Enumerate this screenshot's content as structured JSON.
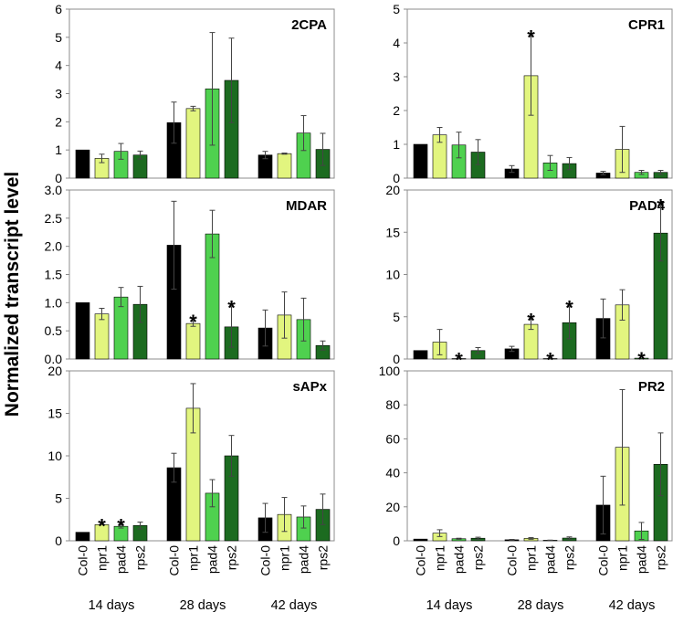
{
  "ylabel": "Normalized transcript level",
  "groups": [
    "14 days",
    "28 days",
    "42 days"
  ],
  "genotypes": [
    "Col-0",
    "npr1",
    "pad4",
    "rps2"
  ],
  "colors": [
    "#000000",
    "#e2f57f",
    "#4fd14f",
    "#1c6b20"
  ],
  "chart_data": [
    {
      "type": "bar",
      "title": "2CPA",
      "ylim": [
        0,
        6
      ],
      "yticks": [
        "0",
        "1",
        "2",
        "3",
        "4",
        "5",
        "6"
      ],
      "categories": [
        "14 days",
        "28 days",
        "42 days"
      ],
      "series": [
        {
          "name": "Col-0",
          "values": [
            1.0,
            1.97,
            0.82
          ],
          "errors": [
            0.0,
            0.73,
            0.13
          ]
        },
        {
          "name": "npr1",
          "values": [
            0.7,
            2.47,
            0.87
          ],
          "errors": [
            0.15,
            0.08,
            0.02
          ]
        },
        {
          "name": "pad4",
          "values": [
            0.95,
            3.17,
            1.6
          ],
          "errors": [
            0.28,
            2.0,
            0.62
          ]
        },
        {
          "name": "rps2",
          "values": [
            0.82,
            3.47,
            1.02
          ],
          "errors": [
            0.14,
            1.5,
            0.57
          ]
        }
      ],
      "stars": []
    },
    {
      "type": "bar",
      "title": "CPR1",
      "ylim": [
        0,
        5
      ],
      "yticks": [
        "0",
        "1",
        "2",
        "3",
        "4",
        "5"
      ],
      "categories": [
        "14 days",
        "28 days",
        "42 days"
      ],
      "series": [
        {
          "name": "Col-0",
          "values": [
            1.0,
            0.27,
            0.15
          ],
          "errors": [
            0.0,
            0.1,
            0.05
          ]
        },
        {
          "name": "npr1",
          "values": [
            1.28,
            3.03,
            0.85
          ],
          "errors": [
            0.22,
            1.17,
            0.68
          ]
        },
        {
          "name": "pad4",
          "values": [
            0.98,
            0.45,
            0.17
          ],
          "errors": [
            0.38,
            0.22,
            0.06
          ]
        },
        {
          "name": "rps2",
          "values": [
            0.77,
            0.43,
            0.17
          ],
          "errors": [
            0.37,
            0.18,
            0.06
          ]
        }
      ],
      "stars": [
        {
          "group": 1,
          "series": 1,
          "label": "*"
        }
      ]
    },
    {
      "type": "bar",
      "title": "MDAR",
      "ylim": [
        0,
        3.0
      ],
      "yticks": [
        "0.0",
        "0.5",
        "1.0",
        "1.5",
        "2.0",
        "2.5",
        "3.0"
      ],
      "categories": [
        "14 days",
        "28 days",
        "42 days"
      ],
      "series": [
        {
          "name": "Col-0",
          "values": [
            1.0,
            2.02,
            0.55
          ],
          "errors": [
            0.0,
            0.78,
            0.32
          ]
        },
        {
          "name": "npr1",
          "values": [
            0.8,
            0.63,
            0.78
          ],
          "errors": [
            0.1,
            0.05,
            0.41
          ]
        },
        {
          "name": "pad4",
          "values": [
            1.1,
            2.22,
            0.7
          ],
          "errors": [
            0.17,
            0.42,
            0.38
          ]
        },
        {
          "name": "rps2",
          "values": [
            0.97,
            0.57,
            0.24
          ],
          "errors": [
            0.32,
            0.36,
            0.08
          ]
        }
      ],
      "stars": [
        {
          "group": 1,
          "series": 1,
          "label": "*"
        },
        {
          "group": 1,
          "series": 3,
          "label": "*"
        }
      ]
    },
    {
      "type": "bar",
      "title": "PAD4",
      "ylim": [
        0,
        20
      ],
      "yticks": [
        "0",
        "5",
        "10",
        "15",
        "20"
      ],
      "categories": [
        "14 days",
        "28 days",
        "42 days"
      ],
      "series": [
        {
          "name": "Col-0",
          "values": [
            1.0,
            1.2,
            4.8
          ],
          "errors": [
            0.0,
            0.3,
            2.3
          ]
        },
        {
          "name": "npr1",
          "values": [
            2.0,
            4.1,
            6.4
          ],
          "errors": [
            1.5,
            0.6,
            1.8
          ]
        },
        {
          "name": "pad4",
          "values": [
            0.05,
            0.05,
            0.1
          ],
          "errors": [
            0.0,
            0.0,
            0.0
          ]
        },
        {
          "name": "rps2",
          "values": [
            1.0,
            4.3,
            14.9
          ],
          "errors": [
            0.35,
            1.9,
            3.3
          ]
        }
      ],
      "stars": [
        {
          "group": 0,
          "series": 2,
          "label": "*"
        },
        {
          "group": 1,
          "series": 1,
          "label": "*"
        },
        {
          "group": 1,
          "series": 2,
          "label": "*"
        },
        {
          "group": 1,
          "series": 3,
          "label": "*"
        },
        {
          "group": 2,
          "series": 2,
          "label": "*"
        },
        {
          "group": 2,
          "series": 3,
          "label": "*"
        }
      ]
    },
    {
      "type": "bar",
      "title": "sAPx",
      "ylim": [
        0,
        20
      ],
      "yticks": [
        "0",
        "5",
        "10",
        "15",
        "20"
      ],
      "categories": [
        "14 days",
        "28 days",
        "42 days"
      ],
      "series": [
        {
          "name": "Col-0",
          "values": [
            1.0,
            8.6,
            2.7
          ],
          "errors": [
            0.0,
            1.7,
            1.7
          ]
        },
        {
          "name": "npr1",
          "values": [
            1.9,
            15.6,
            3.1
          ],
          "errors": [
            0.0,
            2.9,
            2.0
          ]
        },
        {
          "name": "pad4",
          "values": [
            1.7,
            5.6,
            2.8
          ],
          "errors": [
            0.2,
            1.6,
            1.3
          ]
        },
        {
          "name": "rps2",
          "values": [
            1.8,
            10.0,
            3.7
          ],
          "errors": [
            0.4,
            2.4,
            1.8
          ]
        }
      ],
      "stars": [
        {
          "group": 0,
          "series": 1,
          "label": "*"
        },
        {
          "group": 0,
          "series": 2,
          "label": "*"
        }
      ]
    },
    {
      "type": "bar",
      "title": "PR2",
      "ylim": [
        0,
        100
      ],
      "yticks": [
        "0",
        "20",
        "40",
        "60",
        "80",
        "100"
      ],
      "categories": [
        "14 days",
        "28 days",
        "42 days"
      ],
      "series": [
        {
          "name": "Col-0",
          "values": [
            1.0,
            0.6,
            21.0
          ],
          "errors": [
            0.0,
            0.2,
            17.0
          ]
        },
        {
          "name": "npr1",
          "values": [
            4.5,
            1.4,
            55.0
          ],
          "errors": [
            2.0,
            0.5,
            34.0
          ]
        },
        {
          "name": "pad4",
          "values": [
            1.2,
            0.3,
            5.8
          ],
          "errors": [
            0.3,
            0.1,
            5.0
          ]
        },
        {
          "name": "rps2",
          "values": [
            1.5,
            1.6,
            45.0
          ],
          "errors": [
            0.6,
            0.7,
            18.5
          ]
        }
      ],
      "stars": []
    }
  ]
}
